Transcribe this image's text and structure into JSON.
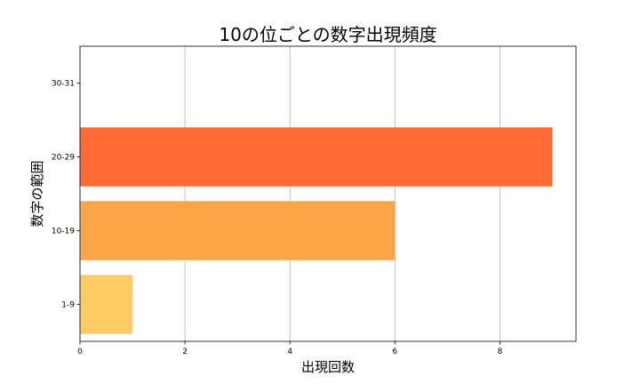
{
  "chart_data": {
    "type": "bar",
    "orientation": "horizontal",
    "title": "10の位ごとの数字出現頻度",
    "xlabel": "出現回数",
    "ylabel": "数字の範囲",
    "categories": [
      "1-9",
      "10-19",
      "20-29",
      "30-31"
    ],
    "values": [
      1,
      6,
      9,
      0
    ],
    "colors": [
      "#fdca66",
      "#fca447",
      "#fc6b34",
      "#fc6b34"
    ],
    "xlim": [
      0,
      9.45
    ],
    "xticks": [
      0,
      2,
      4,
      6,
      8
    ],
    "grid": "x-axis vertical lines"
  }
}
